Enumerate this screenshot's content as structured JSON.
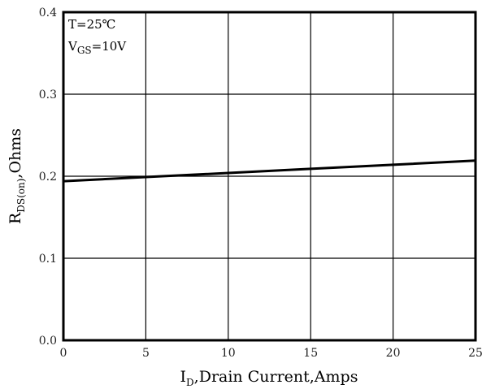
{
  "chart_data": {
    "type": "line",
    "title": "",
    "xlabel": {
      "main": "I",
      "sub": "D",
      "rest": ",Drain Current,Amps"
    },
    "ylabel": {
      "main": "R",
      "sub": "DS(on)",
      "rest": ",Ohms"
    },
    "xlim": [
      0,
      25
    ],
    "ylim": [
      0.0,
      0.4
    ],
    "x_ticks": [
      "0",
      "5",
      "10",
      "15",
      "20",
      "25"
    ],
    "y_ticks": [
      "0.0",
      "0.1",
      "0.2",
      "0.3",
      "0.4"
    ],
    "grid": true,
    "series": [
      {
        "x": [
          0,
          5,
          10,
          15,
          20,
          25
        ],
        "y": [
          0.194,
          0.199,
          0.204,
          0.209,
          0.214,
          0.219
        ]
      }
    ],
    "annotations": [
      {
        "text": "T=25℃"
      },
      {
        "main": "V",
        "sub": "GS",
        "rest": "=10V"
      }
    ],
    "colors": {
      "line": "#000000",
      "grid": "#000000",
      "frame": "#000000",
      "background": "#ffffff"
    }
  }
}
